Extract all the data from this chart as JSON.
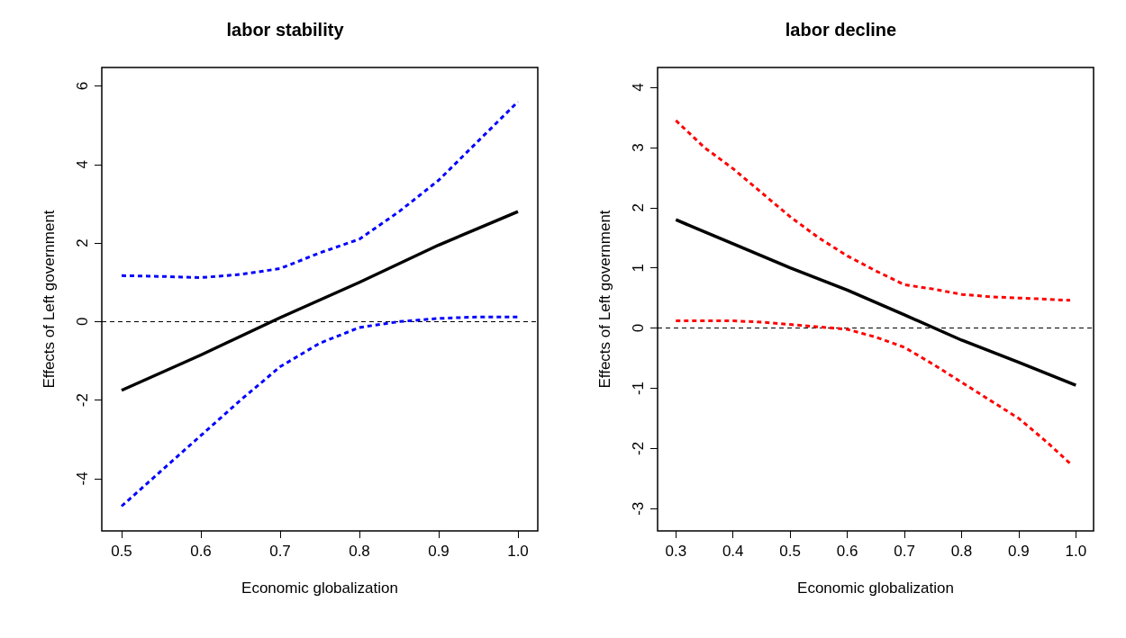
{
  "chart_data": [
    {
      "type": "line",
      "title": "labor stability",
      "xlabel": "Economic globalization",
      "ylabel": "Effects of Left government",
      "xlim": [
        0.475,
        1.025
      ],
      "ylim": [
        -5.33,
        6.47
      ],
      "xticks": [
        0.5,
        0.6,
        0.7,
        0.8,
        0.9,
        {
          "value": 1,
          "label": "1.0"
        }
      ],
      "yticks": [
        -4,
        -2,
        0,
        2,
        4,
        6
      ],
      "marker": "none",
      "series": [
        {
          "color": "#0000ff",
          "line_style": "dotted",
          "x": [
            0.5,
            0.55,
            0.6,
            0.65,
            0.7,
            0.75,
            0.8,
            0.85,
            0.9,
            0.95,
            1.0
          ],
          "values": [
            1.17,
            1.15,
            1.12,
            1.2,
            1.35,
            1.75,
            2.1,
            2.8,
            3.6,
            4.6,
            5.6
          ]
        },
        {
          "color": "#000000",
          "line_style": "solid",
          "x": [
            0.5,
            0.6,
            0.7,
            0.8,
            0.9,
            1.0
          ],
          "values": [
            -1.75,
            -0.85,
            0.1,
            1.0,
            1.95,
            2.8
          ]
        },
        {
          "color": "#0000ff",
          "line_style": "dotted",
          "x": [
            0.5,
            0.55,
            0.6,
            0.65,
            0.7,
            0.75,
            0.8,
            0.85,
            0.9,
            0.95,
            1.0
          ],
          "values": [
            -4.7,
            -3.8,
            -2.9,
            -2.0,
            -1.15,
            -0.55,
            -0.15,
            0.0,
            0.08,
            0.12,
            0.12
          ]
        }
      ],
      "ref_lines": [
        {
          "axis": "y",
          "value": 0,
          "line_style": "dashed",
          "color": "#000000"
        }
      ]
    },
    {
      "type": "line",
      "title": "labor decline",
      "xlabel": "Economic globalization",
      "ylabel": "Effects of Left government",
      "xlim": [
        0.268,
        1.031
      ],
      "ylim": [
        -3.37,
        4.33
      ],
      "xticks": [
        0.3,
        0.4,
        0.5,
        0.6,
        0.7,
        0.8,
        0.9,
        {
          "value": 1,
          "label": "1.0"
        }
      ],
      "yticks": [
        -3,
        -2,
        -1,
        0,
        1,
        2,
        3,
        4
      ],
      "marker": "none",
      "series": [
        {
          "color": "#ff0000",
          "line_style": "dotted",
          "x": [
            0.3,
            0.35,
            0.4,
            0.45,
            0.5,
            0.55,
            0.6,
            0.65,
            0.7,
            0.75,
            0.8,
            0.85,
            0.9,
            0.95,
            0.99
          ],
          "values": [
            3.45,
            3.0,
            2.65,
            2.25,
            1.85,
            1.5,
            1.2,
            0.95,
            0.72,
            0.65,
            0.56,
            0.52,
            0.5,
            0.48,
            0.46
          ]
        },
        {
          "color": "#000000",
          "line_style": "solid",
          "x": [
            0.3,
            0.4,
            0.5,
            0.6,
            0.7,
            0.8,
            0.9,
            1.0
          ],
          "values": [
            1.8,
            1.4,
            1.0,
            0.63,
            0.22,
            -0.2,
            -0.57,
            -0.95
          ]
        },
        {
          "color": "#ff0000",
          "line_style": "dotted",
          "x": [
            0.3,
            0.35,
            0.4,
            0.45,
            0.5,
            0.55,
            0.6,
            0.65,
            0.7,
            0.75,
            0.8,
            0.85,
            0.9,
            0.95,
            0.99
          ],
          "values": [
            0.12,
            0.12,
            0.12,
            0.1,
            0.06,
            0.02,
            -0.02,
            -0.15,
            -0.32,
            -0.6,
            -0.9,
            -1.2,
            -1.5,
            -1.9,
            -2.25
          ]
        }
      ],
      "ref_lines": [
        {
          "axis": "y",
          "value": 0,
          "line_style": "dashed",
          "color": "#000000"
        }
      ]
    }
  ]
}
